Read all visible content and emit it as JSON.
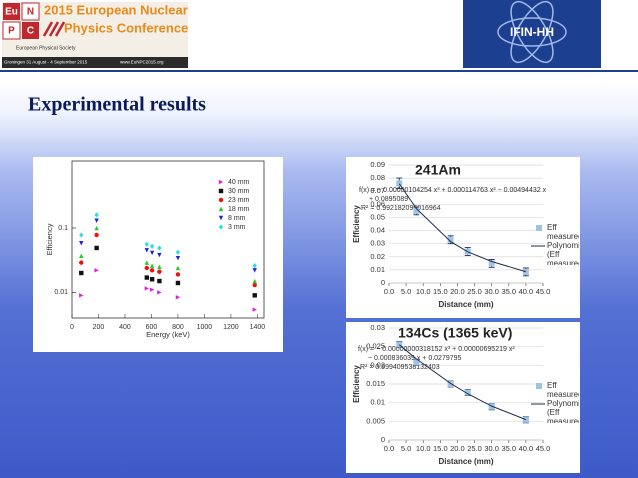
{
  "header": {
    "logo_letters": [
      "Eu",
      "N",
      "P",
      "C"
    ],
    "conference": [
      "2015 European Nuclear",
      "Physics Conference"
    ],
    "society": "European Physical Society",
    "dates": "Groningen 31 August - 4 September 2015",
    "url": "www.EuNPC2015.org",
    "right_logo": "IFIN-HH"
  },
  "slide_title": "Experimental results",
  "chart_data": [
    {
      "type": "scatter",
      "x_label": "Energy (keV)",
      "y_label": "Efficiency",
      "log_y": true,
      "grid": false,
      "legend": "upper right",
      "x": [
        70,
        186,
        565,
        605,
        660,
        800,
        1380
      ],
      "xlim": [
        0,
        1450
      ],
      "xticks": [
        0,
        200,
        400,
        600,
        800,
        1000,
        1200,
        1400
      ],
      "ylim": [
        0.004,
        1.1
      ],
      "yticks": [
        0.01,
        0.1
      ],
      "series": [
        {
          "name": "40 mm",
          "color": "#e020e0",
          "marker": "triangle-right",
          "values": [
            0.009,
            0.022,
            0.0115,
            0.011,
            0.01,
            0.0084,
            0.0054
          ]
        },
        {
          "name": "30 mm",
          "color": "#111111",
          "marker": "square",
          "values": [
            0.02,
            0.049,
            0.017,
            0.016,
            0.015,
            0.014,
            0.009
          ]
        },
        {
          "name": "23 mm",
          "color": "#ee1111",
          "marker": "circle",
          "values": [
            0.029,
            0.078,
            0.024,
            0.022,
            0.021,
            0.019,
            0.013
          ]
        },
        {
          "name": "18 mm",
          "color": "#22cc22",
          "marker": "triangle-up",
          "values": [
            0.037,
            0.1,
            0.029,
            0.026,
            0.025,
            0.024,
            0.015
          ]
        },
        {
          "name": "8 mm",
          "color": "#2222dd",
          "marker": "triangle-down",
          "values": [
            0.058,
            0.13,
            0.045,
            0.041,
            0.038,
            0.034,
            0.022
          ]
        },
        {
          "name": "3 mm",
          "color": "#33dddd",
          "marker": "diamond",
          "values": [
            0.078,
            0.16,
            0.056,
            0.052,
            0.049,
            0.042,
            0.026
          ]
        }
      ]
    },
    {
      "type": "scatter",
      "title": "241Am",
      "annotation": [
        "f(x) = − 0.00000104254 x³ + 0.000114763 x² − 0.00494432 x",
        "+ 0.0895089",
        "R² = 0.992182096016964"
      ],
      "x_label": "Distance (mm)",
      "y_label": "Efficiency",
      "grid": true,
      "legend": "right",
      "x": [
        3,
        8,
        18,
        23,
        30,
        40
      ],
      "xlim": [
        0,
        45
      ],
      "xticks": [
        {
          "value": 0,
          "label": "0.0"
        },
        {
          "value": 5,
          "label": "5.0"
        },
        {
          "value": 10,
          "label": "10.0"
        },
        {
          "value": 15,
          "label": "15.0"
        },
        {
          "value": 20,
          "label": "20.0"
        },
        {
          "value": 25,
          "label": "25.0"
        },
        {
          "value": 30,
          "label": "30.0"
        },
        {
          "value": 35,
          "label": "35.0"
        },
        {
          "value": 40,
          "label": "40.0"
        },
        {
          "value": 45,
          "label": "45.0"
        }
      ],
      "ylim": [
        0,
        0.09
      ],
      "yticks": [
        0,
        0.01,
        0.02,
        0.03,
        0.04,
        0.05,
        0.06,
        0.07,
        0.08,
        0.09
      ],
      "series": [
        {
          "name": "Eff measured",
          "color": "#9dc3e6",
          "marker": "square",
          "values": [
            0.076,
            0.055,
            0.033,
            0.024,
            0.015,
            0.0085
          ],
          "errors": [
            0.004,
            0.003,
            0.003,
            0.003,
            0.003,
            0.003
          ]
        },
        {
          "name": "Polynomial (Eff measured)",
          "color": "#1f2d4d",
          "mode": "line",
          "values": [
            0.0757,
            0.0568,
            0.0316,
            0.0238,
            0.0164,
            0.0086
          ]
        }
      ]
    },
    {
      "type": "scatter",
      "title": "134Cs (1365 keV)",
      "annotation": [
        "f(x) = − 0.00000000318152 x³ + 0.00000695219 x²",
        "− 0.000836039 x + 0.0279795",
        "R² = 0.999409538132403"
      ],
      "x_label": "Distance (mm)",
      "y_label": "Efficiency",
      "grid": true,
      "legend": "right",
      "x": [
        3,
        8,
        18,
        23,
        30,
        40
      ],
      "xlim": [
        0,
        45
      ],
      "xticks": [
        {
          "value": 0,
          "label": "0.0"
        },
        {
          "value": 5,
          "label": "5.0"
        },
        {
          "value": 10,
          "label": "10.0"
        },
        {
          "value": 15,
          "label": "15.0"
        },
        {
          "value": 20,
          "label": "20.0"
        },
        {
          "value": 25,
          "label": "25.0"
        },
        {
          "value": 30,
          "label": "30.0"
        },
        {
          "value": 35,
          "label": "35.0"
        },
        {
          "value": 40,
          "label": "40.0"
        },
        {
          "value": 45,
          "label": "45.0"
        }
      ],
      "ylim": [
        0,
        0.03
      ],
      "yticks": [
        0,
        0.005,
        0.01,
        0.015,
        0.02,
        0.025,
        0.03
      ],
      "series": [
        {
          "name": "Eff measured",
          "color": "#9dc3e6",
          "marker": "square",
          "values": [
            0.0256,
            0.0208,
            0.015,
            0.0127,
            0.0089,
            0.0054
          ],
          "errors": [
            0.0008,
            0.0008,
            0.0008,
            0.0008,
            0.0008,
            0.0008
          ]
        },
        {
          "name": "Polynomial (Eff measured)",
          "color": "#1f2d4d",
          "mode": "line",
          "values": [
            0.02553,
            0.02173,
            0.01516,
            0.01239,
            0.00907,
            0.00546
          ]
        }
      ]
    }
  ]
}
